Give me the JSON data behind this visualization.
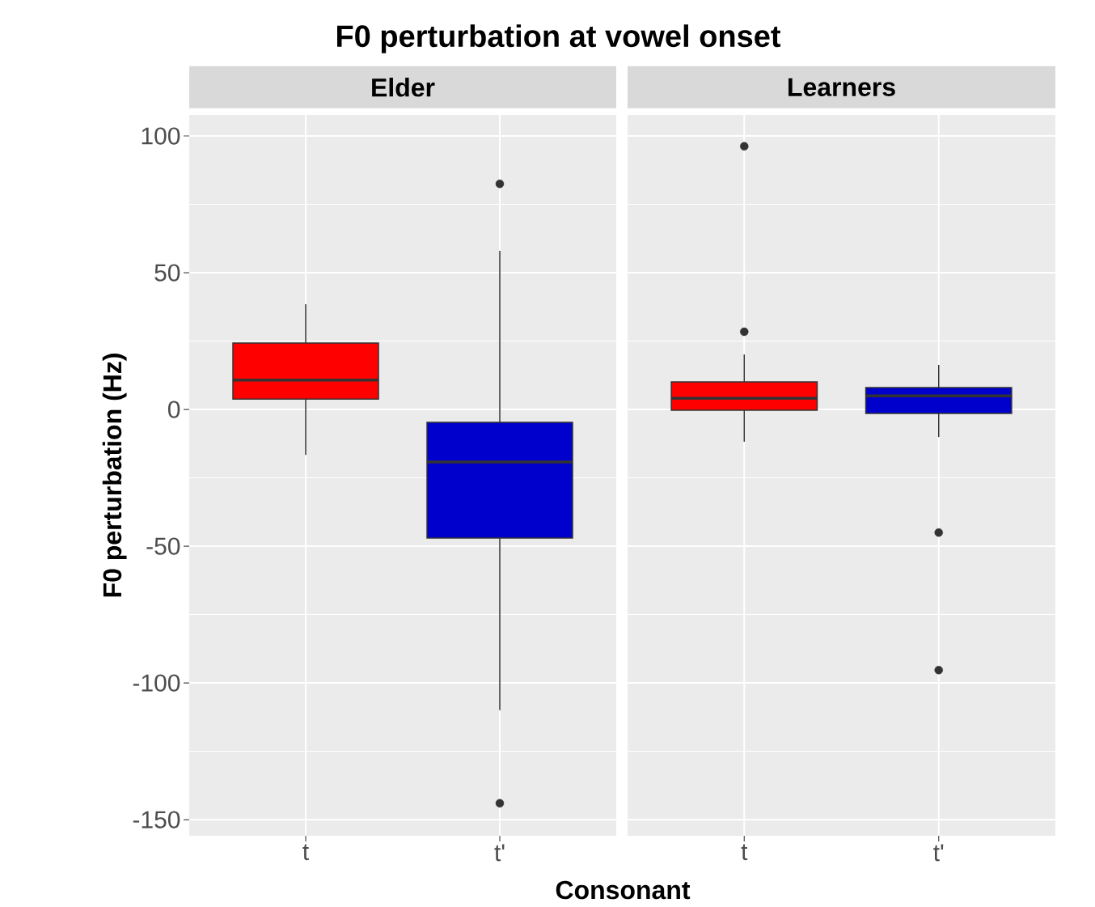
{
  "chart_data": [
    {
      "type": "box",
      "title": "F0 perturbation at vowel onset",
      "subtitle": "Elder",
      "xlabel": "Consonant",
      "ylabel": "F0 perturbation (Hz)",
      "categories": [
        "t",
        "t'"
      ],
      "colors": [
        "#ff0000",
        "#0000cd"
      ],
      "boxes": [
        {
          "low": -16.6,
          "q1": 3.8,
          "median": 10.7,
          "q3": 24.3,
          "high": 38.5
        },
        {
          "low": -110,
          "q1": -47,
          "median": -19.2,
          "q3": -4.7,
          "high": 58,
          "outliers": [
            82.5,
            -144
          ]
        }
      ],
      "ylim": [
        -155.9,
        107.7
      ],
      "yticks": [
        -150,
        -100,
        -50,
        0,
        50,
        100
      ],
      "grid": true
    },
    {
      "type": "box",
      "subtitle": "Learners",
      "categories": [
        "t",
        "t'"
      ],
      "colors": [
        "#ff0000",
        "#0000cd"
      ],
      "boxes": [
        {
          "low": -11.8,
          "q1": -0.3,
          "median": 4.1,
          "q3": 10.1,
          "high": 20.1,
          "outliers": [
            96.2,
            28.4
          ]
        },
        {
          "low": -10.1,
          "q1": -1.5,
          "median": 5.0,
          "q3": 8.0,
          "high": 16.3,
          "outliers": [
            -45,
            -95.3
          ]
        }
      ],
      "ylim": [
        -155.9,
        107.7
      ],
      "yticks": [
        -150,
        -100,
        -50,
        0,
        50,
        100
      ],
      "grid": true,
      "tick_labels": "x"
    }
  ]
}
